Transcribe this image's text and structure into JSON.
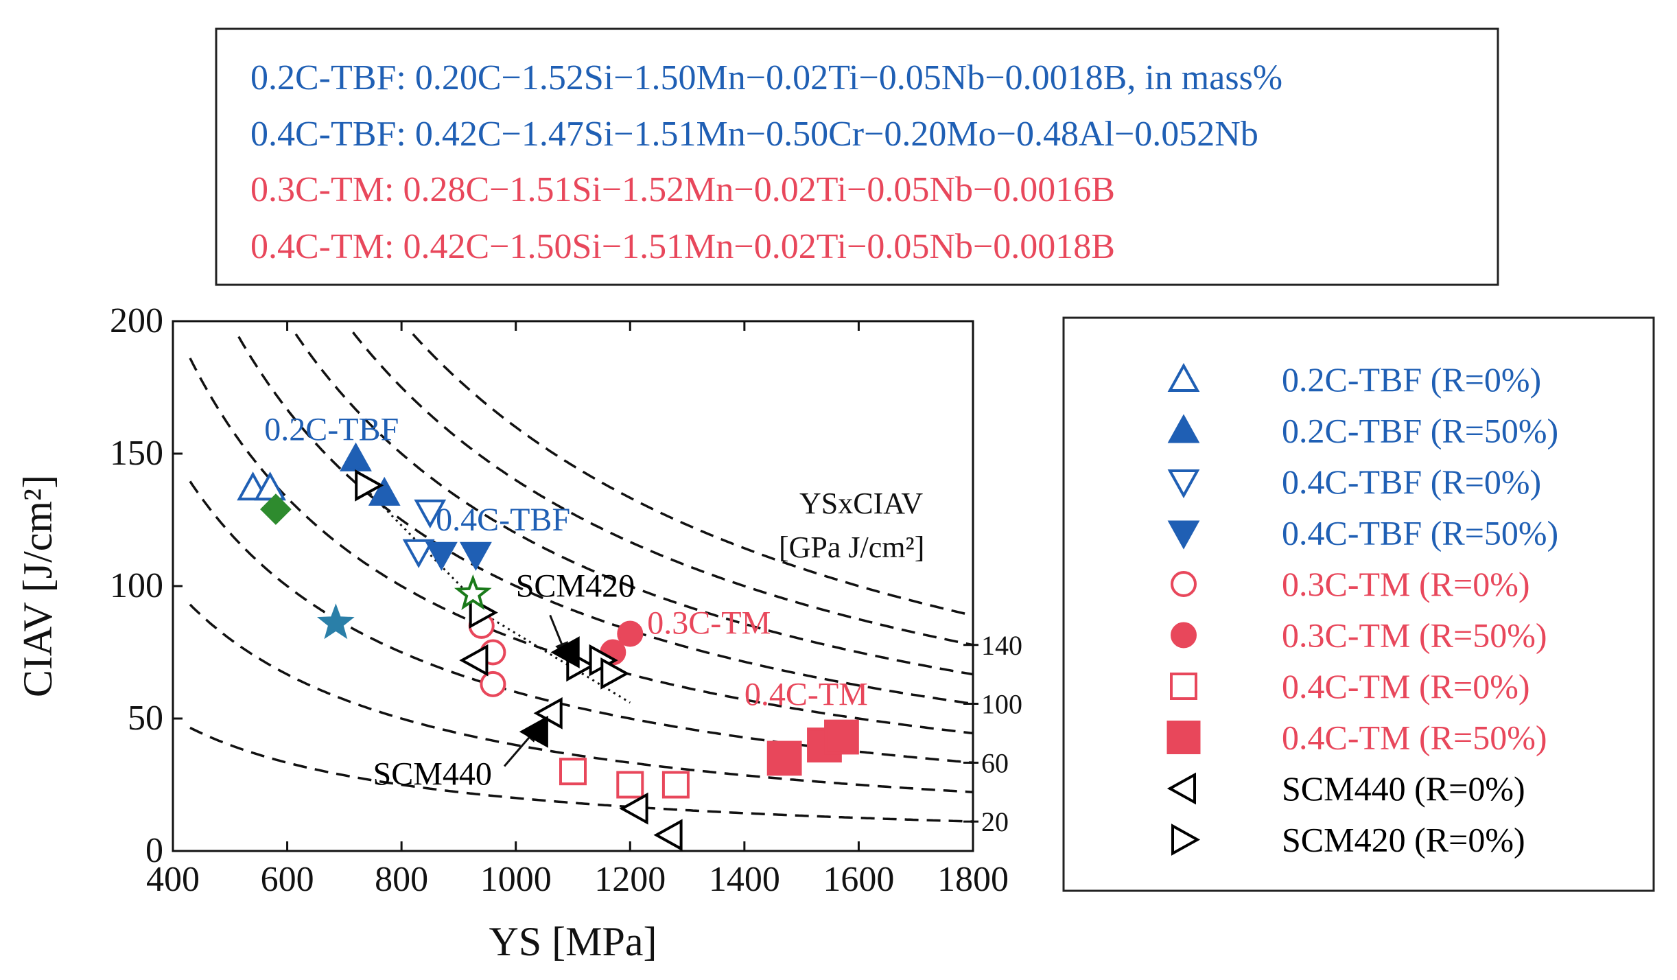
{
  "compositions": [
    {
      "text": "0.2C-TBF: 0.20C−1.52Si−1.50Mn−0.02Ti−0.05Nb−0.0018B, in mass%",
      "color": "#1f5fb4"
    },
    {
      "text": "0.4C-TBF: 0.42C−1.47Si−1.51Mn−0.50Cr−0.20Mo−0.48Al−0.052Nb",
      "color": "#1f5fb4"
    },
    {
      "text": "0.3C-TM: 0.28C−1.51Si−1.52Mn−0.02Ti−0.05Nb−0.0016B",
      "color": "#e8475b"
    },
    {
      "text": "0.4C-TM: 0.42C−1.50Si−1.51Mn−0.02Ti−0.05Nb−0.0018B",
      "color": "#e8475b"
    }
  ],
  "chart_data": {
    "type": "scatter",
    "xlabel": "YS [MPa]",
    "ylabel": "CIAV [J/cm²]",
    "xlim": [
      400,
      1800
    ],
    "ylim": [
      0,
      200
    ],
    "xticks": [
      400,
      600,
      800,
      1000,
      1200,
      1400,
      1600,
      1800
    ],
    "yticks": [
      0,
      50,
      100,
      150,
      200
    ],
    "contour_label": {
      "line1": "YSxCIAV",
      "line2": "[GPa J/cm²]"
    },
    "contours": [
      20,
      40,
      60,
      80,
      100,
      120,
      140,
      160
    ],
    "contour_tick_labels": [
      20,
      60,
      100,
      140
    ],
    "series": [
      {
        "name": "0.2C-TBF (R=0%)",
        "color": "#1f5fb4",
        "marker": "triangle-up",
        "filled": false,
        "points": [
          [
            540,
            137
          ],
          [
            570,
            137
          ]
        ]
      },
      {
        "name": "0.2C-TBF (R=50%)",
        "color": "#1f5fb4",
        "marker": "triangle-up",
        "filled": true,
        "points": [
          [
            720,
            148
          ],
          [
            770,
            135
          ]
        ]
      },
      {
        "name": "0.4C-TBF (R=0%)",
        "color": "#1f5fb4",
        "marker": "triangle-down",
        "filled": false,
        "points": [
          [
            830,
            113
          ],
          [
            850,
            128
          ]
        ]
      },
      {
        "name": "0.4C-TBF (R=50%)",
        "color": "#1f5fb4",
        "marker": "triangle-down",
        "filled": true,
        "points": [
          [
            870,
            112
          ],
          [
            930,
            112
          ]
        ]
      },
      {
        "name": "0.3C-TM (R=0%)",
        "color": "#e8475b",
        "marker": "circle",
        "filled": false,
        "points": [
          [
            940,
            85
          ],
          [
            960,
            75
          ],
          [
            960,
            63
          ]
        ]
      },
      {
        "name": "0.3C-TM (R=50%)",
        "color": "#e8475b",
        "marker": "circle",
        "filled": true,
        "points": [
          [
            1170,
            75
          ],
          [
            1200,
            82
          ]
        ]
      },
      {
        "name": "0.4C-TM (R=0%)",
        "color": "#e8475b",
        "marker": "square",
        "filled": false,
        "points": [
          [
            1100,
            30
          ],
          [
            1200,
            25
          ],
          [
            1280,
            25
          ]
        ]
      },
      {
        "name": "0.4C-TM (R=50%)",
        "color": "#e8475b",
        "marker": "square",
        "filled": true,
        "points": [
          [
            1470,
            35
          ],
          [
            1540,
            40
          ],
          [
            1570,
            43
          ]
        ]
      },
      {
        "name": "SCM440 (R=0%)",
        "color": "#000000",
        "marker": "triangle-left",
        "filled": false,
        "points": [
          [
            930,
            72
          ],
          [
            1060,
            52
          ],
          [
            1210,
            16
          ],
          [
            1270,
            6
          ]
        ]
      },
      {
        "name": "SCM420 (R=0%)",
        "color": "#000000",
        "marker": "triangle-right",
        "filled": false,
        "points": [
          [
            740,
            138
          ],
          [
            940,
            90
          ],
          [
            1110,
            70
          ],
          [
            1150,
            72
          ],
          [
            1170,
            67
          ]
        ]
      }
    ],
    "extra_points": [
      {
        "name": "unlabeled-diamond",
        "color": "#2e8b2e",
        "marker": "diamond",
        "filled": true,
        "points": [
          [
            580,
            129
          ]
        ]
      },
      {
        "name": "unlabeled-star-teal",
        "color": "#2a7fa8",
        "marker": "star",
        "filled": true,
        "points": [
          [
            685,
            86
          ]
        ]
      },
      {
        "name": "unlabeled-star-green",
        "color": "#1a7a1a",
        "marker": "star",
        "filled": false,
        "points": [
          [
            925,
            97
          ]
        ]
      },
      {
        "name": "unlabeled-filled-left-a",
        "color": "#000000",
        "marker": "triangle-left",
        "filled": true,
        "points": [
          [
            1090,
            75
          ]
        ]
      },
      {
        "name": "unlabeled-filled-left-b",
        "color": "#000000",
        "marker": "triangle-left",
        "filled": true,
        "points": [
          [
            1035,
            45
          ]
        ]
      }
    ],
    "annotations": [
      {
        "text": "0.2C-TBF",
        "color": "#1f5fb4",
        "at": [
          560,
          155
        ]
      },
      {
        "text": "0.4C-TBF",
        "color": "#1f5fb4",
        "at": [
          860,
          121
        ]
      },
      {
        "text": "SCM420",
        "color": "#000000",
        "at": [
          1000,
          96
        ]
      },
      {
        "text": "0.3C-TM",
        "color": "#e8475b",
        "at": [
          1230,
          82
        ]
      },
      {
        "text": "0.4C-TM",
        "color": "#e8475b",
        "at": [
          1400,
          55
        ]
      },
      {
        "text": "SCM440",
        "color": "#000000",
        "at": [
          750,
          25
        ]
      }
    ],
    "arrows": [
      {
        "from": [
          1060,
          89
        ],
        "to": [
          1090,
          73
        ]
      },
      {
        "from": [
          980,
          32
        ],
        "to": [
          1040,
          47
        ]
      }
    ]
  }
}
